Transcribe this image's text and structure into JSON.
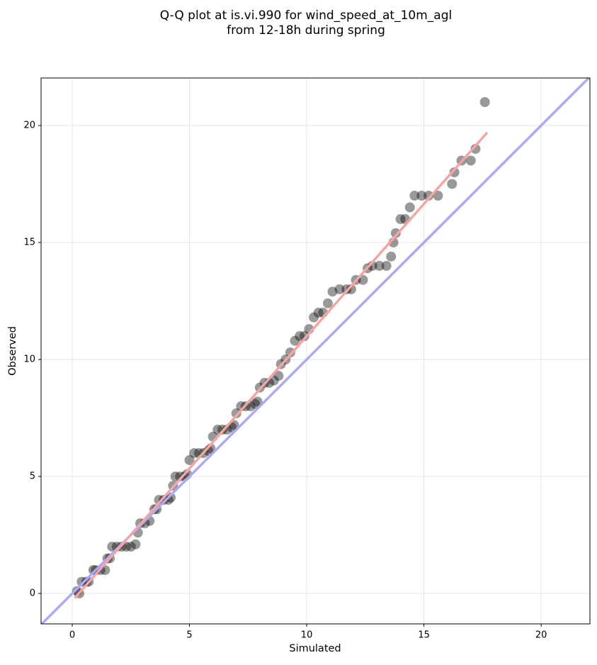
{
  "chart_data": {
    "type": "scatter",
    "title": [
      "Q-Q plot at is.vi.990 for wind_speed_at_10m_agl",
      "from 12-18h during spring"
    ],
    "x_label": "Simulated",
    "y_label": "Observed",
    "xlim": [
      -1.33,
      22.08
    ],
    "ylim": [
      -1.3,
      22.03
    ],
    "xticks": [
      0,
      5,
      10,
      15,
      20
    ],
    "yticks": [
      0,
      5,
      10,
      15,
      20
    ],
    "grid": true,
    "points": {
      "color": "rgba(0,0,0,0.4)",
      "x": [
        0.2,
        0.3,
        0.4,
        0.6,
        0.7,
        0.9,
        1.0,
        1.2,
        1.4,
        1.5,
        1.6,
        1.7,
        1.9,
        2.1,
        2.3,
        2.5,
        2.7,
        2.8,
        2.9,
        3.1,
        3.3,
        3.5,
        3.6,
        3.7,
        3.9,
        4.1,
        4.2,
        4.3,
        4.4,
        4.6,
        4.8,
        4.9,
        5.0,
        5.2,
        5.4,
        5.6,
        5.8,
        5.9,
        6.0,
        6.2,
        6.4,
        6.6,
        6.8,
        6.9,
        7.0,
        7.2,
        7.4,
        7.6,
        7.8,
        7.9,
        8.0,
        8.2,
        8.4,
        8.6,
        8.8,
        8.9,
        9.1,
        9.3,
        9.5,
        9.7,
        9.9,
        10.1,
        10.3,
        10.5,
        10.7,
        10.9,
        11.1,
        11.4,
        11.7,
        11.9,
        12.1,
        12.4,
        12.6,
        12.8,
        13.1,
        13.4,
        13.6,
        13.7,
        13.8,
        14.0,
        14.2,
        14.4,
        14.6,
        14.9,
        15.2,
        15.6,
        16.2,
        16.3,
        16.6,
        17.0,
        17.2,
        17.6
      ],
      "y": [
        0.1,
        0,
        0.5,
        0.5,
        0.5,
        1,
        1,
        1,
        1,
        1.5,
        1.5,
        2,
        2,
        2,
        2,
        2,
        2.1,
        2.6,
        3,
        3,
        3.1,
        3.6,
        3.6,
        4,
        4,
        4,
        4.1,
        4.6,
        5,
        5,
        5,
        5.1,
        5.7,
        6,
        6,
        6,
        6.1,
        6.2,
        6.7,
        7,
        7,
        7,
        7.1,
        7.2,
        7.7,
        8,
        8,
        8,
        8.1,
        8.2,
        8.8,
        9,
        9,
        9.1,
        9.3,
        9.8,
        10,
        10.3,
        10.8,
        11,
        11,
        11.3,
        11.8,
        12,
        12,
        12.4,
        12.9,
        13,
        13,
        13,
        13.4,
        13.4,
        13.9,
        14,
        14,
        14,
        14.4,
        15,
        15.4,
        16,
        16,
        16.5,
        17,
        17,
        17,
        17,
        17.5,
        18,
        18.5,
        18.5,
        19,
        21
      ]
    },
    "lines": [
      {
        "color": "#aaaaf5",
        "x": [
          -1.33,
          22.08
        ],
        "y": [
          -1.33,
          22.08
        ]
      },
      {
        "color": "#f5a5a5",
        "x": [
          0.1,
          17.7
        ],
        "y": [
          -0.2,
          19.7
        ]
      }
    ]
  }
}
